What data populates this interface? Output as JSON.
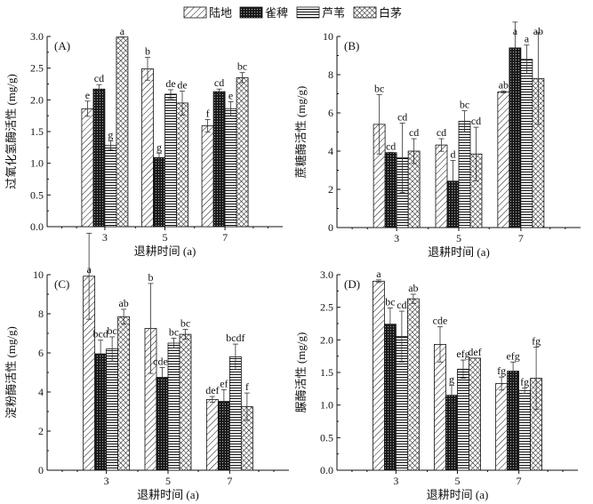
{
  "legend": [
    "陆地",
    "雀稗",
    "芦苇",
    "白茅"
  ],
  "chart_data": [
    {
      "panel": "(A)",
      "type": "bar",
      "categories": [
        "3",
        "5",
        "7"
      ],
      "xlabel": "退耕时间 (a)",
      "ylabel": "过氧化氢酶活性 (mg/g)",
      "ylim": [
        0,
        3
      ],
      "yticks": [
        "0.0",
        "0.5",
        "1.0",
        "1.5",
        "2.0",
        "2.5",
        "3.0"
      ],
      "series": [
        {
          "name": "陆地",
          "values": [
            1.86,
            2.49,
            1.59
          ],
          "errors": [
            0.12,
            0.18,
            0.1
          ],
          "letters": [
            "e",
            "b",
            "f"
          ]
        },
        {
          "name": "雀稗",
          "values": [
            2.17,
            1.09,
            2.13
          ],
          "errors": [
            0.07,
            0.07,
            0.04
          ],
          "letters": [
            "cd",
            "g",
            "cd"
          ]
        },
        {
          "name": "芦苇",
          "values": [
            1.28,
            2.09,
            1.86
          ],
          "errors": [
            0.07,
            0.07,
            0.11
          ],
          "letters": [
            "g",
            "de",
            "e"
          ]
        },
        {
          "name": "白茅",
          "values": [
            2.99,
            1.95,
            2.35
          ],
          "errors": [
            0.0,
            0.19,
            0.08
          ],
          "letters": [
            "a",
            "de",
            "bc"
          ]
        }
      ]
    },
    {
      "panel": "(B)",
      "type": "bar",
      "categories": [
        "3",
        "5",
        "7"
      ],
      "xlabel": "退耕时间 (a)",
      "ylabel": "蔗糖酶活性 (mg/g)",
      "ylim": [
        0,
        10
      ],
      "yticks": [
        "0",
        "2",
        "4",
        "6",
        "8",
        "10"
      ],
      "series": [
        {
          "name": "陆地",
          "values": [
            5.4,
            4.32,
            7.1
          ],
          "errors": [
            1.55,
            0.33,
            0.05
          ],
          "letters": [
            "bc",
            "cd",
            "ab"
          ]
        },
        {
          "name": "雀稗",
          "values": [
            3.92,
            2.43,
            9.4
          ],
          "errors": [
            0.02,
            1.08,
            1.35
          ],
          "letters": [
            "cd",
            "d",
            "a"
          ]
        },
        {
          "name": "芦苇",
          "values": [
            3.65,
            5.56,
            8.8
          ],
          "errors": [
            1.82,
            0.55,
            0.75
          ],
          "letters": [
            "cd",
            "bc",
            "a"
          ]
        },
        {
          "name": "白茅",
          "values": [
            4.0,
            3.85,
            7.8
          ],
          "errors": [
            0.65,
            1.4,
            2.4
          ],
          "letters": [
            "cd",
            "cd",
            "ab"
          ]
        }
      ]
    },
    {
      "panel": "(C)",
      "type": "bar",
      "categories": [
        "3",
        "5",
        "7"
      ],
      "xlabel": "退耕时间 (a)",
      "ylabel": "淀粉酶活性 (mg/g)",
      "ylim": [
        0,
        10
      ],
      "yticks": [
        "0",
        "2",
        "4",
        "6",
        "8",
        "10"
      ],
      "series": [
        {
          "name": "陆地",
          "values": [
            9.92,
            7.25,
            3.62
          ],
          "errors": [
            2.2,
            2.3,
            0.15
          ],
          "letters": [
            "a",
            "b",
            "def"
          ]
        },
        {
          "name": "雀稗",
          "values": [
            5.95,
            4.75,
            3.52
          ],
          "errors": [
            0.7,
            0.5,
            0.6
          ],
          "letters": [
            "bcd",
            "cdef",
            "ef"
          ]
        },
        {
          "name": "芦苇",
          "values": [
            6.2,
            6.5,
            5.8
          ],
          "errors": [
            0.62,
            0.25,
            0.65
          ],
          "letters": [
            "bc",
            "bc",
            "bcdf"
          ]
        },
        {
          "name": "白茅",
          "values": [
            7.85,
            6.95,
            3.25
          ],
          "errors": [
            0.38,
            0.25,
            0.7
          ],
          "letters": [
            "ab",
            "bc",
            "f"
          ]
        }
      ]
    },
    {
      "panel": "(D)",
      "type": "bar",
      "categories": [
        "3",
        "5",
        "7"
      ],
      "xlabel": "退耕时间 (a)",
      "ylabel": "脲酶活性 (mg/g)",
      "ylim": [
        0,
        3
      ],
      "yticks": [
        "0.0",
        "0.5",
        "1.0",
        "1.5",
        "2.0",
        "2.5",
        "3.0"
      ],
      "series": [
        {
          "name": "陆地",
          "values": [
            2.9,
            1.93,
            1.33
          ],
          "errors": [
            0.02,
            0.27,
            0.1
          ],
          "letters": [
            "a",
            "cde",
            "fg"
          ]
        },
        {
          "name": "雀稗",
          "values": [
            2.24,
            1.15,
            1.52
          ],
          "errors": [
            0.25,
            0.15,
            0.14
          ],
          "letters": [
            "bc",
            "g",
            "efg"
          ]
        },
        {
          "name": "芦苇",
          "values": [
            2.05,
            1.55,
            1.22
          ],
          "errors": [
            0.39,
            0.14,
            0.04
          ],
          "letters": [
            "cd",
            "efg",
            "fg"
          ]
        },
        {
          "name": "白茅",
          "values": [
            2.63,
            1.72,
            1.41
          ],
          "errors": [
            0.07,
            0.0,
            0.48
          ],
          "letters": [
            "ab",
            "def",
            "fg"
          ]
        }
      ]
    }
  ]
}
